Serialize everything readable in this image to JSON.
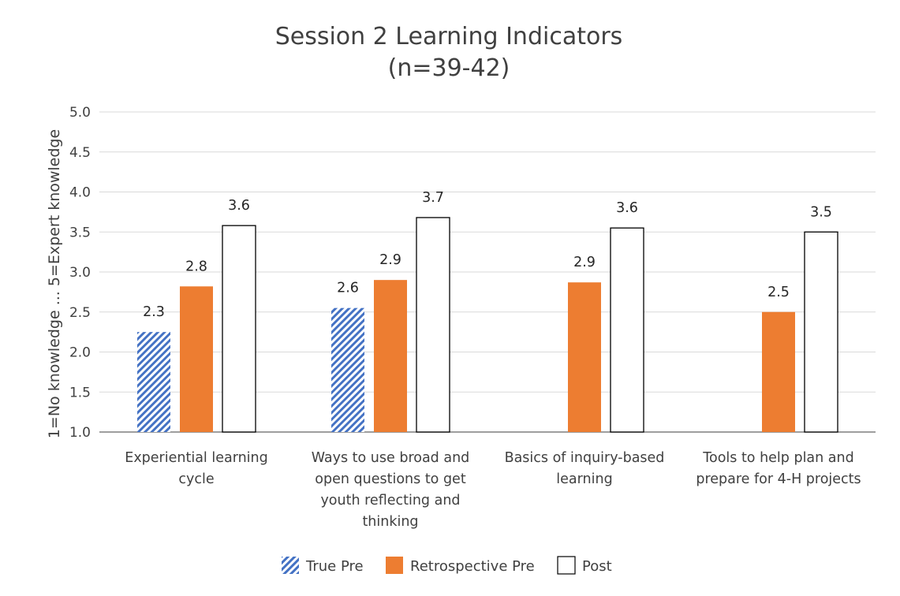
{
  "chart_data": {
    "type": "bar",
    "title_lines": [
      "Session 2 Learning Indicators",
      "(n=39-42)"
    ],
    "ylabel": "1=No knowledge ... 5=Expert knowledge",
    "xlabel": "",
    "ylim": [
      1.0,
      5.0
    ],
    "y_ticks": [
      "1.0",
      "1.5",
      "2.0",
      "2.5",
      "3.0",
      "3.5",
      "4.0",
      "4.5",
      "5.0"
    ],
    "grid": true,
    "legend_position": "bottom",
    "categories": [
      [
        "Experiential learning",
        "cycle"
      ],
      [
        "Ways to use broad and",
        "open questions to get",
        "youth reflecting and",
        "thinking"
      ],
      [
        "Basics of inquiry-based",
        "learning"
      ],
      [
        "Tools to help plan and",
        "prepare for 4-H projects"
      ]
    ],
    "series": [
      {
        "name": "True Pre",
        "values": [
          2.25,
          2.55,
          null,
          null
        ],
        "labels": [
          "2.3",
          "2.6",
          null,
          null
        ],
        "color": "#4472C4",
        "pattern": "diagonal-hatch"
      },
      {
        "name": "Retrospective Pre",
        "values": [
          2.82,
          2.9,
          2.87,
          2.5
        ],
        "labels": [
          "2.8",
          "2.9",
          "2.9",
          "2.5"
        ],
        "color": "#ED7D31",
        "pattern": "solid"
      },
      {
        "name": "Post",
        "values": [
          3.58,
          3.68,
          3.55,
          3.5
        ],
        "labels": [
          "3.6",
          "3.7",
          "3.6",
          "3.5"
        ],
        "color": "#FFFFFF",
        "pattern": "outline"
      }
    ]
  }
}
